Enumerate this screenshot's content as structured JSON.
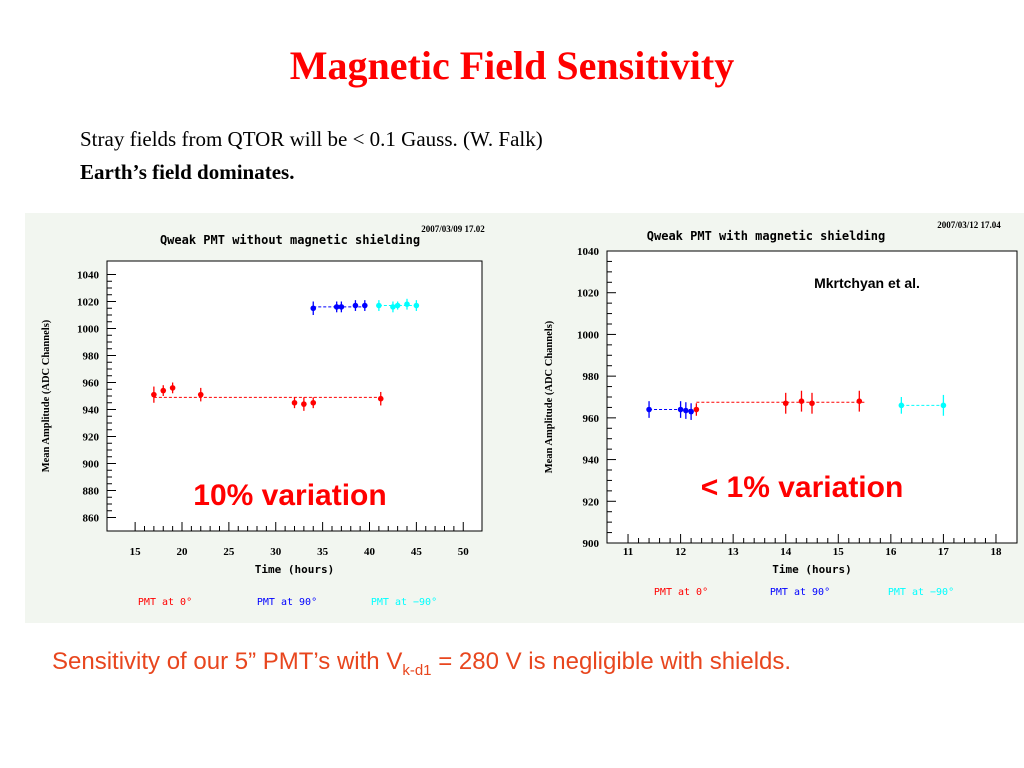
{
  "slide": {
    "title": "Magnetic Field Sensitivity",
    "line1": "Stray fields from QTOR will be  < 0.1 Gauss. (W. Falk)",
    "line2": "Earth’s field dominates.",
    "footer_pre": "Sensitivity of our 5” PMT’s with V",
    "footer_sub": "k-d1",
    "footer_post": " = 280 V is negligible with shields."
  },
  "colors": {
    "pmt0": "#ff0000",
    "pmt90": "#0000ff",
    "pmtm90": "#00ffff",
    "annotation": "#ff0000",
    "footer": "#e8461e"
  },
  "chart_data": [
    {
      "type": "scatter",
      "title": "Qweak PMT without magnetic shielding",
      "date_stamp": "2007/03/09   17.02",
      "xlabel": "Time (hours)",
      "ylabel": "Mean Amplitude (ADC Channels)",
      "xlim": [
        12,
        52
      ],
      "ylim": [
        850,
        1050
      ],
      "xticks": [
        15,
        20,
        25,
        30,
        35,
        40,
        45,
        50
      ],
      "yticks": [
        860,
        880,
        900,
        920,
        940,
        960,
        980,
        1000,
        1020,
        1040
      ],
      "annotation": "10% variation",
      "legend": [
        "PMT at 0°",
        "PMT at 90°",
        "PMT at −90°"
      ],
      "series": [
        {
          "name": "PMT at 0°",
          "color": "#ff0000",
          "x": [
            17,
            18,
            19,
            22,
            32,
            33,
            34,
            41.2
          ],
          "y": [
            951,
            954,
            956,
            951,
            945,
            944,
            945,
            948
          ],
          "err": [
            6,
            4,
            4,
            5,
            4,
            5,
            4,
            5
          ],
          "fit": {
            "y": 949,
            "x": [
              17,
              41.5
            ]
          }
        },
        {
          "name": "PMT at 90°",
          "color": "#0000ff",
          "x": [
            34,
            36.5,
            37,
            38.5,
            39.5
          ],
          "y": [
            1015,
            1016,
            1016,
            1017,
            1017
          ],
          "err": [
            5,
            4,
            4,
            4,
            4
          ],
          "fit": {
            "y": 1016,
            "x": [
              34,
              39.5
            ]
          }
        },
        {
          "name": "PMT at −90°",
          "color": "#00ffff",
          "x": [
            41,
            42.5,
            43,
            44,
            45
          ],
          "y": [
            1017,
            1016,
            1017,
            1018,
            1017
          ],
          "err": [
            4,
            4,
            3,
            4,
            4
          ],
          "fit": {
            "y": 1017,
            "x": [
              41,
              45
            ]
          }
        }
      ]
    },
    {
      "type": "scatter",
      "title": "Qweak PMT with magnetic shielding",
      "date_stamp": "2007/03/12   17.04",
      "xlabel": "Time (hours)",
      "ylabel": "Mean Amplitude (ADC Channels)",
      "xlim": [
        10.6,
        18.4
      ],
      "ylim": [
        900,
        1040
      ],
      "xticks": [
        11,
        12,
        13,
        14,
        15,
        16,
        17,
        18
      ],
      "yticks": [
        900,
        920,
        940,
        960,
        980,
        1000,
        1020,
        1040
      ],
      "annotation": "< 1% variation",
      "credit": "Mkrtchyan et al.",
      "legend": [
        "PMT at 0°",
        "PMT at 90°",
        "PMT at −90°"
      ],
      "series": [
        {
          "name": "PMT at 0°",
          "color": "#ff0000",
          "x": [
            12.3,
            14,
            14.3,
            14.5,
            15.4
          ],
          "y": [
            964,
            967,
            968,
            967,
            968
          ],
          "err": [
            3,
            5,
            5,
            5,
            5
          ],
          "fit": {
            "y": 967.5,
            "x": [
              12.3,
              15.5
            ]
          }
        },
        {
          "name": "PMT at 90°",
          "color": "#0000ff",
          "x": [
            11.4,
            12,
            12.1,
            12.2
          ],
          "y": [
            964,
            964,
            963.5,
            963
          ],
          "err": [
            4,
            4,
            4,
            4
          ],
          "fit": {
            "y": 964,
            "x": [
              11.4,
              12.2
            ]
          }
        },
        {
          "name": "PMT at −90°",
          "color": "#00ffff",
          "x": [
            16.2,
            17
          ],
          "y": [
            966,
            966
          ],
          "err": [
            4,
            5
          ],
          "fit": {
            "y": 966,
            "x": [
              16.2,
              17
            ]
          }
        }
      ]
    }
  ]
}
